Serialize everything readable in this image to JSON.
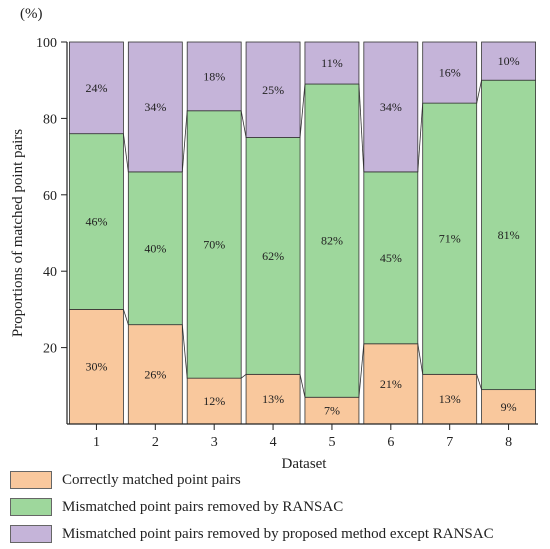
{
  "chart_data": {
    "type": "bar",
    "stacked": true,
    "unit_label": "(%)",
    "xlabel": "Dataset",
    "ylabel": "Proportions of matched point pairs",
    "ylim": [
      0,
      100
    ],
    "yticks": [
      20,
      40,
      60,
      80,
      100
    ],
    "categories": [
      "1",
      "2",
      "3",
      "4",
      "5",
      "6",
      "7",
      "8"
    ],
    "series": [
      {
        "name": "Correctly matched point pairs",
        "color": "#f9c89d",
        "values": [
          30,
          26,
          12,
          13,
          7,
          21,
          13,
          9
        ],
        "labels": [
          "30%",
          "26%",
          "12%",
          "13%",
          "7%",
          "21%",
          "13%",
          "9%"
        ]
      },
      {
        "name": "Mismatched point pairs removed by RANSAC",
        "color": "#9ed79c",
        "values": [
          46,
          40,
          70,
          62,
          82,
          45,
          71,
          81
        ],
        "labels": [
          "46%",
          "40%",
          "70%",
          "62%",
          "82%",
          "45%",
          "71%",
          "81%"
        ]
      },
      {
        "name": "Mismatched point pairs removed by proposed method except RANSAC",
        "color": "#c5b4d9",
        "values": [
          24,
          34,
          18,
          25,
          11,
          34,
          16,
          10
        ],
        "labels": [
          "24%",
          "34%",
          "18%",
          "25%",
          "11%",
          "34%",
          "16%",
          "10%"
        ]
      }
    ],
    "grid": false,
    "legend_position": "bottom"
  }
}
